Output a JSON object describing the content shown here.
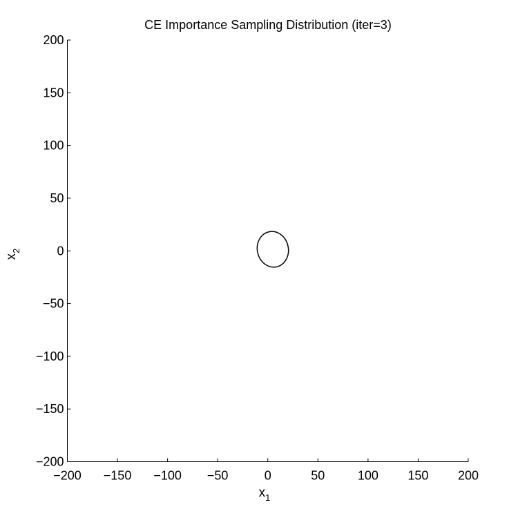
{
  "chart_data": {
    "type": "line",
    "title": "CE Importance Sampling Distribution (iter=3)",
    "xlabel": {
      "base": "x",
      "subscript": "1"
    },
    "ylabel": {
      "base": "x",
      "subscript": "2"
    },
    "xlim": [
      -200,
      200
    ],
    "ylim": [
      -200,
      200
    ],
    "xticks": [
      -200,
      -150,
      -100,
      -50,
      0,
      50,
      100,
      150,
      200
    ],
    "yticks": [
      -200,
      -150,
      -100,
      -50,
      0,
      50,
      100,
      150,
      200
    ],
    "xtick_labels": [
      "−200",
      "−150",
      "−100",
      "−50",
      "0",
      "50",
      "100",
      "150",
      "200"
    ],
    "ytick_labels": [
      "−200",
      "−150",
      "−100",
      "−50",
      "0",
      "50",
      "100",
      "150",
      "200"
    ],
    "grid": false,
    "legend": "none",
    "series": [
      {
        "shape": "ellipse",
        "center": [
          5,
          1.5
        ],
        "radius_x": 15.5,
        "radius_y": 17,
        "color": "#000000"
      }
    ]
  }
}
